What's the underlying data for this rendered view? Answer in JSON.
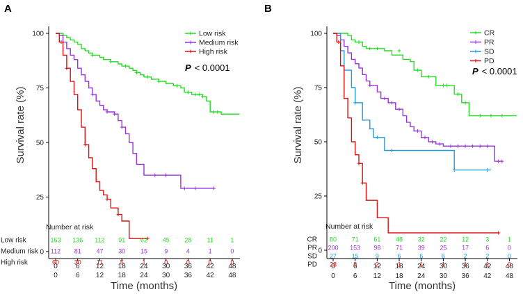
{
  "chart_data": [
    {
      "panel": "A",
      "type": "line",
      "subtype": "kaplan-meier",
      "ylabel": "Survival rate (%)",
      "xlabel": "Time (months)",
      "xlim": [
        0,
        50
      ],
      "ylim": [
        0,
        100
      ],
      "xticks": [
        0,
        6,
        12,
        18,
        24,
        30,
        36,
        42,
        48
      ],
      "yticks": [
        0,
        25,
        50,
        75,
        100
      ],
      "legend_position": "top-right",
      "pvalue": {
        "label": "P",
        "text": "< 0.0001"
      },
      "series": [
        {
          "name": "Low risk",
          "color": "#22dd22",
          "steps": [
            [
              0,
              100
            ],
            [
              1.5,
              100
            ],
            [
              2,
              99
            ],
            [
              3,
              98
            ],
            [
              4,
              97
            ],
            [
              5,
              96
            ],
            [
              6,
              95
            ],
            [
              7,
              93
            ],
            [
              8,
              92
            ],
            [
              9,
              91
            ],
            [
              10,
              90
            ],
            [
              12,
              89
            ],
            [
              13,
              88
            ],
            [
              15,
              87
            ],
            [
              17,
              86
            ],
            [
              18,
              85
            ],
            [
              20,
              84
            ],
            [
              21,
              83
            ],
            [
              22,
              82
            ],
            [
              23,
              81
            ],
            [
              24,
              80
            ],
            [
              26,
              79
            ],
            [
              28,
              78
            ],
            [
              30,
              77
            ],
            [
              32,
              76
            ],
            [
              34,
              75
            ],
            [
              35,
              73
            ],
            [
              37,
              72
            ],
            [
              40,
              71
            ],
            [
              41,
              69
            ],
            [
              42,
              64
            ],
            [
              45,
              63
            ],
            [
              50,
              63
            ]
          ],
          "censors": [
            [
              10,
              90
            ],
            [
              15,
              87
            ],
            [
              19,
              85
            ],
            [
              22,
              82
            ],
            [
              25,
              80
            ],
            [
              28,
              78
            ],
            [
              33,
              76
            ],
            [
              36,
              73
            ],
            [
              38,
              72
            ],
            [
              39,
              72
            ],
            [
              40,
              71
            ],
            [
              43,
              64
            ],
            [
              44,
              64
            ]
          ]
        },
        {
          "name": "Medium risk",
          "color": "#9933dd",
          "steps": [
            [
              0,
              100
            ],
            [
              1,
              99
            ],
            [
              2,
              96
            ],
            [
              3,
              93
            ],
            [
              4,
              90
            ],
            [
              5,
              88
            ],
            [
              6,
              84
            ],
            [
              7,
              81
            ],
            [
              8,
              78
            ],
            [
              9,
              75
            ],
            [
              10,
              72
            ],
            [
              11,
              69
            ],
            [
              12,
              67
            ],
            [
              13,
              65
            ],
            [
              14,
              64
            ],
            [
              16,
              63
            ],
            [
              17,
              60
            ],
            [
              18,
              57
            ],
            [
              19,
              54
            ],
            [
              20,
              50
            ],
            [
              21,
              45
            ],
            [
              22,
              40
            ],
            [
              24,
              35
            ],
            [
              33,
              35
            ],
            [
              34,
              29
            ],
            [
              43,
              29
            ]
          ],
          "censors": [
            [
              10,
              72
            ],
            [
              14,
              64
            ],
            [
              16,
              63
            ],
            [
              18,
              57
            ],
            [
              27,
              35
            ],
            [
              30,
              35
            ],
            [
              35,
              29
            ],
            [
              38,
              29
            ],
            [
              43,
              29
            ]
          ]
        },
        {
          "name": "High risk",
          "color": "#dd1111",
          "steps": [
            [
              0,
              100
            ],
            [
              1,
              96
            ],
            [
              2,
              90
            ],
            [
              3,
              84
            ],
            [
              4,
              78
            ],
            [
              5,
              72
            ],
            [
              6,
              65
            ],
            [
              7,
              57
            ],
            [
              8,
              49
            ],
            [
              9,
              43
            ],
            [
              10,
              38
            ],
            [
              11,
              32
            ],
            [
              12,
              28
            ],
            [
              13,
              26
            ],
            [
              14,
              24
            ],
            [
              15,
              20
            ],
            [
              17,
              17
            ],
            [
              18,
              14
            ],
            [
              20,
              6
            ],
            [
              25,
              6
            ]
          ],
          "censors": [
            [
              1.5,
              96
            ],
            [
              3,
              84
            ],
            [
              8,
              49
            ],
            [
              14,
              24
            ],
            [
              17,
              17
            ],
            [
              25,
              6
            ]
          ]
        }
      ],
      "risk_table": {
        "header": "Number at risk",
        "times": [
          0,
          6,
          12,
          18,
          24,
          30,
          36,
          42,
          48
        ],
        "rows": [
          {
            "label": "Low risk",
            "color": "#22dd22",
            "values": [
              "163",
              "136",
              "112",
              "91",
              "62",
              "45",
              "28",
              "11",
              "1"
            ]
          },
          {
            "label": "Medium risk",
            "color": "#9933dd",
            "values": [
              "112",
              "81",
              "47",
              "30",
              "15",
              "9",
              "4",
              "1",
              "0"
            ]
          },
          {
            "label": "High risk",
            "color": "#dd1111",
            "values": [
              "60",
              "30",
              "11",
              "5",
              "1",
              "0",
              "0",
              "0",
              "0"
            ]
          }
        ]
      }
    },
    {
      "panel": "B",
      "type": "line",
      "subtype": "kaplan-meier",
      "ylabel": "Survival rate (%)",
      "xlabel": "Time (months)",
      "xlim": [
        0,
        50
      ],
      "ylim": [
        0,
        100
      ],
      "xticks": [
        0,
        6,
        12,
        18,
        24,
        30,
        36,
        42,
        48
      ],
      "yticks": [
        0,
        25,
        50,
        75,
        100
      ],
      "legend_position": "top-right",
      "pvalue": {
        "label": "P",
        "text": "< 0.0001"
      },
      "series": [
        {
          "name": "CR",
          "color": "#22dd22",
          "steps": [
            [
              0,
              100
            ],
            [
              4,
              99
            ],
            [
              5,
              97
            ],
            [
              6,
              96
            ],
            [
              8,
              94
            ],
            [
              9,
              93
            ],
            [
              14,
              92
            ],
            [
              16,
              90
            ],
            [
              19,
              88
            ],
            [
              21,
              87
            ],
            [
              22,
              83
            ],
            [
              24,
              80
            ],
            [
              28,
              76
            ],
            [
              33,
              72
            ],
            [
              35,
              68
            ],
            [
              37,
              62
            ],
            [
              50,
              62
            ]
          ],
          "censors": [
            [
              7,
              96
            ],
            [
              10,
              93
            ],
            [
              12,
              93
            ],
            [
              18,
              92
            ],
            [
              23,
              83
            ],
            [
              26,
              80
            ],
            [
              30,
              76
            ],
            [
              31,
              76
            ],
            [
              34,
              72
            ],
            [
              36,
              68
            ],
            [
              40,
              62
            ],
            [
              43,
              62
            ],
            [
              46,
              62
            ]
          ]
        },
        {
          "name": "PR",
          "color": "#9933dd",
          "steps": [
            [
              0,
              100
            ],
            [
              1,
              99
            ],
            [
              2,
              97
            ],
            [
              3,
              94
            ],
            [
              4,
              91
            ],
            [
              5,
              88
            ],
            [
              6,
              86
            ],
            [
              7,
              84
            ],
            [
              8,
              81
            ],
            [
              9,
              78
            ],
            [
              10,
              76
            ],
            [
              12,
              73
            ],
            [
              13,
              70
            ],
            [
              15,
              68
            ],
            [
              17,
              65
            ],
            [
              19,
              62
            ],
            [
              20,
              59
            ],
            [
              21,
              57
            ],
            [
              22,
              55
            ],
            [
              24,
              52
            ],
            [
              26,
              50
            ],
            [
              28,
              49
            ],
            [
              30,
              48
            ],
            [
              43,
              48
            ],
            [
              44,
              41
            ],
            [
              46,
              41
            ]
          ],
          "censors": [
            [
              10,
              76
            ],
            [
              14,
              70
            ],
            [
              16,
              68
            ],
            [
              18,
              65
            ],
            [
              23,
              55
            ],
            [
              25,
              52
            ],
            [
              27,
              50
            ],
            [
              29,
              49
            ],
            [
              32,
              48
            ],
            [
              34,
              48
            ],
            [
              36,
              48
            ],
            [
              38,
              48
            ],
            [
              40,
              48
            ],
            [
              42,
              48
            ],
            [
              45,
              41
            ],
            [
              46,
              41
            ]
          ]
        },
        {
          "name": "SD",
          "color": "#2299dd",
          "steps": [
            [
              0,
              100
            ],
            [
              2,
              92
            ],
            [
              3,
              83
            ],
            [
              5,
              75
            ],
            [
              6,
              68
            ],
            [
              8,
              60
            ],
            [
              10,
              56
            ],
            [
              11,
              52
            ],
            [
              14,
              46
            ],
            [
              26,
              46
            ],
            [
              33,
              37
            ],
            [
              43,
              37
            ]
          ],
          "censors": [
            [
              6,
              68
            ],
            [
              12,
              52
            ],
            [
              16,
              46
            ],
            [
              33,
              37
            ],
            [
              42,
              37
            ]
          ]
        },
        {
          "name": "PD",
          "color": "#dd1111",
          "steps": [
            [
              0,
              100
            ],
            [
              1,
              96
            ],
            [
              2,
              85
            ],
            [
              3,
              70
            ],
            [
              4,
              61
            ],
            [
              5,
              50
            ],
            [
              6,
              44
            ],
            [
              7,
              40
            ],
            [
              8,
              31
            ],
            [
              9,
              23
            ],
            [
              12,
              15
            ],
            [
              15,
              8
            ],
            [
              45,
              8
            ]
          ],
          "censors": [
            [
              1.5,
              96
            ],
            [
              7,
              40
            ],
            [
              8,
              31
            ],
            [
              45,
              8
            ]
          ]
        }
      ],
      "risk_table": {
        "header": "Number at risk",
        "times": [
          0,
          6,
          12,
          18,
          24,
          30,
          36,
          42,
          48
        ],
        "rows": [
          {
            "label": "CR",
            "color": "#22dd22",
            "values": [
              "80",
              "71",
              "61",
              "48",
              "32",
              "22",
              "12",
              "3",
              "1"
            ]
          },
          {
            "label": "PR",
            "color": "#9933dd",
            "values": [
              "200",
              "153",
              "98",
              "71",
              "39",
              "25",
              "17",
              "6",
              "0"
            ]
          },
          {
            "label": "SD",
            "color": "#2299dd",
            "values": [
              "27",
              "15",
              "9",
              "6",
              "6",
              "6",
              "2",
              "2",
              "0"
            ]
          },
          {
            "label": "PD",
            "color": "#dd1111",
            "values": [
              "28",
              "8",
              "2",
              "1",
              "1",
              "1",
              "1",
              "1",
              "0"
            ]
          }
        ]
      }
    }
  ]
}
